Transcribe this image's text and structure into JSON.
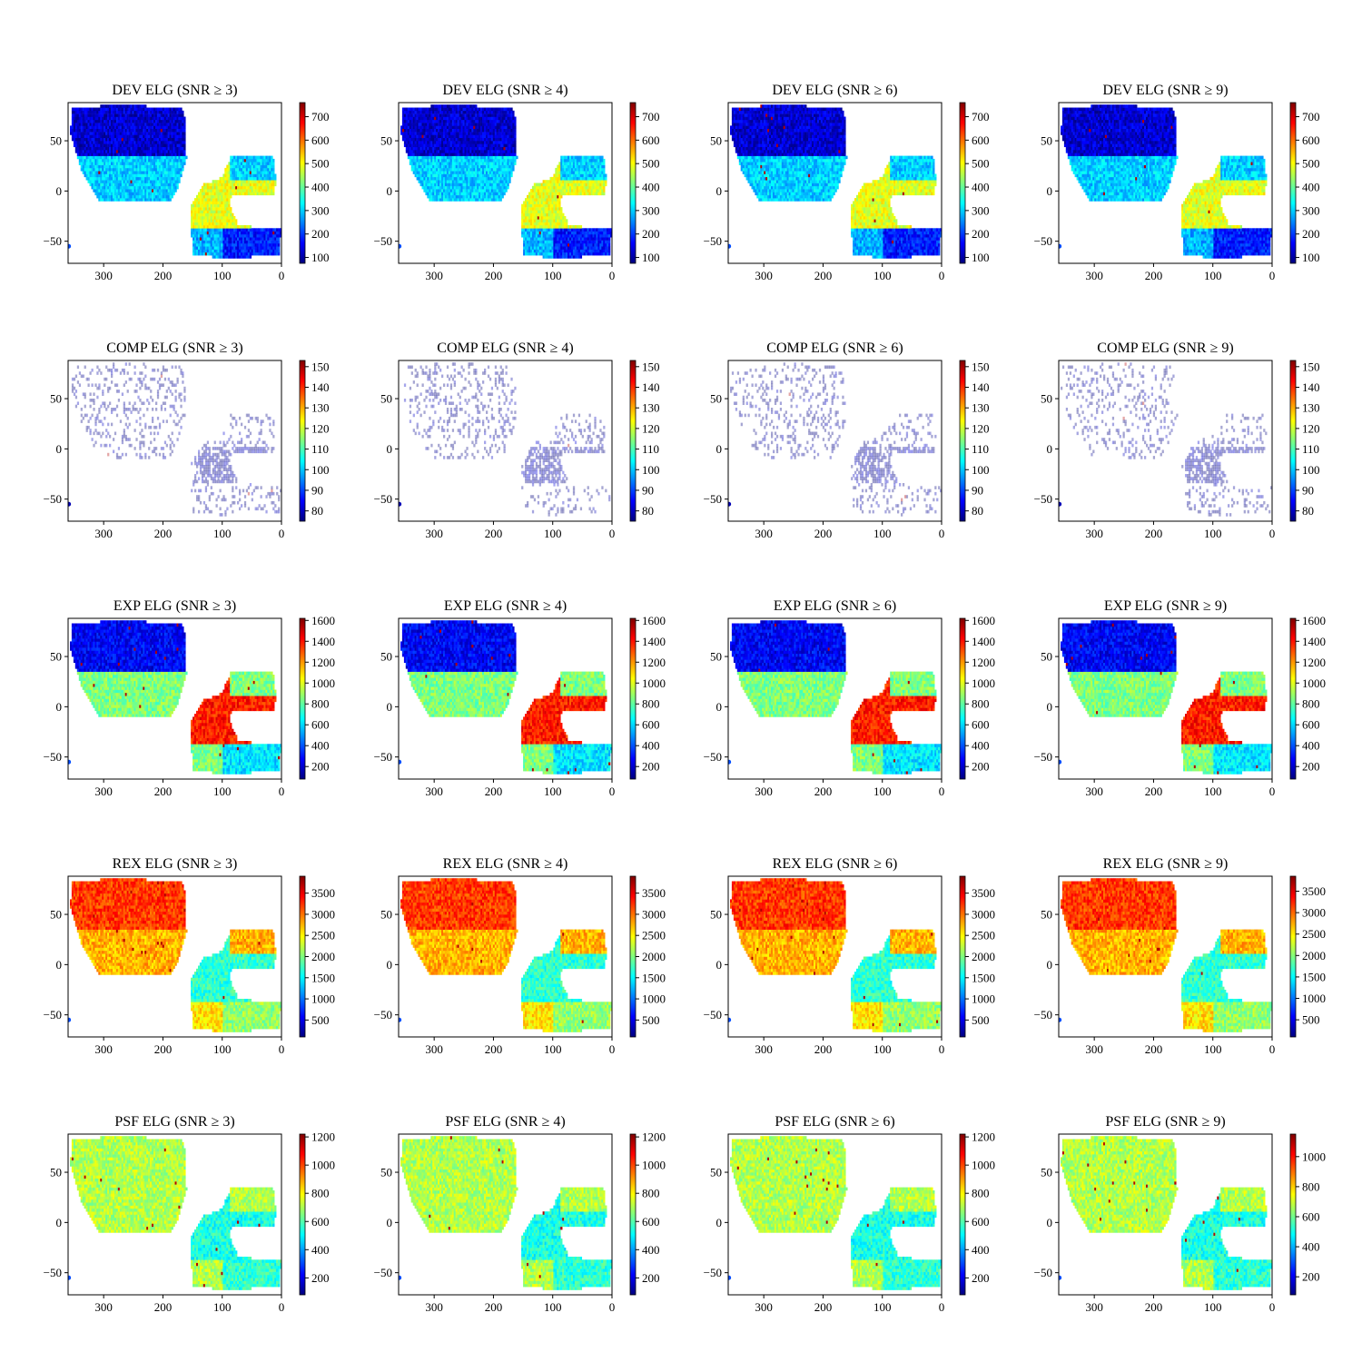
{
  "figure": {
    "colormap": "jet",
    "colormap_stops": [
      "#00007f",
      "#0000ff",
      "#007fff",
      "#00ffff",
      "#7fff7f",
      "#ffff00",
      "#ff7f00",
      "#ff0000",
      "#7f0000"
    ],
    "rows": [
      "DEV",
      "COMP",
      "EXP",
      "REX",
      "PSF"
    ],
    "snr_thresholds": [
      3,
      4,
      6,
      9
    ]
  },
  "chart_data": [
    {
      "type": "heatmap",
      "title": "DEV ELG (SNR ≥ 3)",
      "xlim": [
        360,
        0
      ],
      "ylim": [
        -72,
        88
      ],
      "xticks": [
        300,
        200,
        100,
        0
      ],
      "yticks": [
        50,
        0,
        -50
      ],
      "cbar_range": [
        75,
        760
      ],
      "cbar_ticks": [
        100,
        200,
        300,
        400,
        500,
        600,
        700
      ],
      "density_levels": {
        "north": 0.08,
        "mid": 0.33,
        "southA": 0.6,
        "southB": 0.15,
        "southC": 0.3
      }
    },
    {
      "type": "heatmap",
      "title": "DEV ELG (SNR ≥ 4)",
      "xlim": [
        360,
        0
      ],
      "ylim": [
        -72,
        88
      ],
      "xticks": [
        300,
        200,
        100,
        0
      ],
      "yticks": [
        50,
        0,
        -50
      ],
      "cbar_range": [
        75,
        760
      ],
      "cbar_ticks": [
        100,
        200,
        300,
        400,
        500,
        600,
        700
      ],
      "density_levels": {
        "north": 0.08,
        "mid": 0.33,
        "southA": 0.6,
        "southB": 0.15,
        "southC": 0.3
      }
    },
    {
      "type": "heatmap",
      "title": "DEV ELG (SNR ≥ 6)",
      "xlim": [
        360,
        0
      ],
      "ylim": [
        -72,
        88
      ],
      "xticks": [
        300,
        200,
        100,
        0
      ],
      "yticks": [
        50,
        0,
        -50
      ],
      "cbar_range": [
        75,
        760
      ],
      "cbar_ticks": [
        100,
        200,
        300,
        400,
        500,
        600,
        700
      ],
      "density_levels": {
        "north": 0.08,
        "mid": 0.33,
        "southA": 0.6,
        "southB": 0.15,
        "southC": 0.3
      }
    },
    {
      "type": "heatmap",
      "title": "DEV ELG (SNR ≥ 9)",
      "xlim": [
        360,
        0
      ],
      "ylim": [
        -72,
        88
      ],
      "xticks": [
        300,
        200,
        100,
        0
      ],
      "yticks": [
        50,
        0,
        -50
      ],
      "cbar_range": [
        75,
        760
      ],
      "cbar_ticks": [
        100,
        200,
        300,
        400,
        500,
        600,
        700
      ],
      "density_levels": {
        "north": 0.08,
        "mid": 0.33,
        "southA": 0.6,
        "southB": 0.15,
        "southC": 0.3
      }
    },
    {
      "type": "heatmap",
      "title": "COMP ELG (SNR ≥ 3)",
      "xlim": [
        360,
        0
      ],
      "ylim": [
        -72,
        88
      ],
      "xticks": [
        300,
        200,
        100,
        0
      ],
      "yticks": [
        50,
        0,
        -50
      ],
      "cbar_range": [
        75,
        153
      ],
      "cbar_ticks": [
        80,
        90,
        100,
        110,
        120,
        130,
        140,
        150
      ],
      "density_levels": {
        "north": 0.0,
        "mid": 0.0,
        "southA": 0.02,
        "southB": 0.0,
        "southC": 0.0
      }
    },
    {
      "type": "heatmap",
      "title": "COMP ELG (SNR ≥ 4)",
      "xlim": [
        360,
        0
      ],
      "ylim": [
        -72,
        88
      ],
      "xticks": [
        300,
        200,
        100,
        0
      ],
      "yticks": [
        50,
        0,
        -50
      ],
      "cbar_range": [
        75,
        153
      ],
      "cbar_ticks": [
        80,
        90,
        100,
        110,
        120,
        130,
        140,
        150
      ],
      "density_levels": {
        "north": 0.0,
        "mid": 0.0,
        "southA": 0.02,
        "southB": 0.0,
        "southC": 0.0
      }
    },
    {
      "type": "heatmap",
      "title": "COMP ELG (SNR ≥ 6)",
      "xlim": [
        360,
        0
      ],
      "ylim": [
        -72,
        88
      ],
      "xticks": [
        300,
        200,
        100,
        0
      ],
      "yticks": [
        50,
        0,
        -50
      ],
      "cbar_range": [
        75,
        153
      ],
      "cbar_ticks": [
        80,
        90,
        100,
        110,
        120,
        130,
        140,
        150
      ],
      "density_levels": {
        "north": 0.0,
        "mid": 0.0,
        "southA": 0.02,
        "southB": 0.0,
        "southC": 0.0
      }
    },
    {
      "type": "heatmap",
      "title": "COMP ELG (SNR ≥ 9)",
      "xlim": [
        360,
        0
      ],
      "ylim": [
        -72,
        88
      ],
      "xticks": [
        300,
        200,
        100,
        0
      ],
      "yticks": [
        50,
        0,
        -50
      ],
      "cbar_range": [
        75,
        153
      ],
      "cbar_ticks": [
        80,
        90,
        100,
        110,
        120,
        130,
        140,
        150
      ],
      "density_levels": {
        "north": 0.0,
        "mid": 0.0,
        "southA": 0.02,
        "southB": 0.0,
        "southC": 0.0
      }
    },
    {
      "type": "heatmap",
      "title": "EXP ELG (SNR ≥ 3)",
      "xlim": [
        360,
        0
      ],
      "ylim": [
        -72,
        88
      ],
      "xticks": [
        300,
        200,
        100,
        0
      ],
      "yticks": [
        50,
        0,
        -50
      ],
      "cbar_range": [
        80,
        1620
      ],
      "cbar_ticks": [
        200,
        400,
        600,
        800,
        1000,
        1200,
        1400,
        1600
      ],
      "density_levels": {
        "north": 0.12,
        "mid": 0.5,
        "southA": 0.85,
        "southB": 0.35,
        "southC": 0.5
      }
    },
    {
      "type": "heatmap",
      "title": "EXP ELG (SNR ≥ 4)",
      "xlim": [
        360,
        0
      ],
      "ylim": [
        -72,
        88
      ],
      "xticks": [
        300,
        200,
        100,
        0
      ],
      "yticks": [
        50,
        0,
        -50
      ],
      "cbar_range": [
        80,
        1620
      ],
      "cbar_ticks": [
        200,
        400,
        600,
        800,
        1000,
        1200,
        1400,
        1600
      ],
      "density_levels": {
        "north": 0.12,
        "mid": 0.5,
        "southA": 0.85,
        "southB": 0.35,
        "southC": 0.5
      }
    },
    {
      "type": "heatmap",
      "title": "EXP ELG (SNR ≥ 6)",
      "xlim": [
        360,
        0
      ],
      "ylim": [
        -72,
        88
      ],
      "xticks": [
        300,
        200,
        100,
        0
      ],
      "yticks": [
        50,
        0,
        -50
      ],
      "cbar_range": [
        80,
        1620
      ],
      "cbar_ticks": [
        200,
        400,
        600,
        800,
        1000,
        1200,
        1400,
        1600
      ],
      "density_levels": {
        "north": 0.12,
        "mid": 0.5,
        "southA": 0.85,
        "southB": 0.35,
        "southC": 0.5
      }
    },
    {
      "type": "heatmap",
      "title": "EXP ELG (SNR ≥ 9)",
      "xlim": [
        360,
        0
      ],
      "ylim": [
        -72,
        88
      ],
      "xticks": [
        300,
        200,
        100,
        0
      ],
      "yticks": [
        50,
        0,
        -50
      ],
      "cbar_range": [
        80,
        1620
      ],
      "cbar_ticks": [
        200,
        400,
        600,
        800,
        1000,
        1200,
        1400,
        1600
      ],
      "density_levels": {
        "north": 0.12,
        "mid": 0.5,
        "southA": 0.85,
        "southB": 0.35,
        "southC": 0.5
      }
    },
    {
      "type": "heatmap",
      "title": "REX ELG (SNR ≥ 3)",
      "xlim": [
        360,
        0
      ],
      "ylim": [
        -72,
        88
      ],
      "xticks": [
        300,
        200,
        100,
        0
      ],
      "yticks": [
        50,
        0,
        -50
      ],
      "cbar_range": [
        100,
        3900
      ],
      "cbar_ticks": [
        500,
        1000,
        1500,
        2000,
        2500,
        3000,
        3500
      ],
      "density_levels": {
        "north": 0.82,
        "mid": 0.7,
        "southA": 0.42,
        "southB": 0.52,
        "southC": 0.65
      }
    },
    {
      "type": "heatmap",
      "title": "REX ELG (SNR ≥ 4)",
      "xlim": [
        360,
        0
      ],
      "ylim": [
        -72,
        88
      ],
      "xticks": [
        300,
        200,
        100,
        0
      ],
      "yticks": [
        50,
        0,
        -50
      ],
      "cbar_range": [
        100,
        3900
      ],
      "cbar_ticks": [
        500,
        1000,
        1500,
        2000,
        2500,
        3000,
        3500
      ],
      "density_levels": {
        "north": 0.82,
        "mid": 0.7,
        "southA": 0.42,
        "southB": 0.52,
        "southC": 0.65
      }
    },
    {
      "type": "heatmap",
      "title": "REX ELG (SNR ≥ 6)",
      "xlim": [
        360,
        0
      ],
      "ylim": [
        -72,
        88
      ],
      "xticks": [
        300,
        200,
        100,
        0
      ],
      "yticks": [
        50,
        0,
        -50
      ],
      "cbar_range": [
        100,
        3900
      ],
      "cbar_ticks": [
        500,
        1000,
        1500,
        2000,
        2500,
        3000,
        3500
      ],
      "density_levels": {
        "north": 0.82,
        "mid": 0.7,
        "southA": 0.42,
        "southB": 0.52,
        "southC": 0.65
      }
    },
    {
      "type": "heatmap",
      "title": "REX ELG (SNR ≥ 9)",
      "xlim": [
        360,
        0
      ],
      "ylim": [
        -72,
        88
      ],
      "xticks": [
        300,
        200,
        100,
        0
      ],
      "yticks": [
        50,
        0,
        -50
      ],
      "cbar_range": [
        100,
        3850
      ],
      "cbar_ticks": [
        500,
        1000,
        1500,
        2000,
        2500,
        3000,
        3500
      ],
      "density_levels": {
        "north": 0.82,
        "mid": 0.7,
        "southA": 0.42,
        "southB": 0.52,
        "southC": 0.65
      }
    },
    {
      "type": "heatmap",
      "title": "PSF ELG (SNR ≥ 3)",
      "xlim": [
        360,
        0
      ],
      "ylim": [
        -72,
        88
      ],
      "xticks": [
        300,
        200,
        100,
        0
      ],
      "yticks": [
        50,
        0,
        -50
      ],
      "cbar_range": [
        80,
        1220
      ],
      "cbar_ticks": [
        200,
        400,
        600,
        800,
        1000,
        1200
      ],
      "density_levels": {
        "north": 0.55,
        "mid": 0.55,
        "southA": 0.4,
        "southB": 0.42,
        "southC": 0.55
      }
    },
    {
      "type": "heatmap",
      "title": "PSF ELG (SNR ≥ 4)",
      "xlim": [
        360,
        0
      ],
      "ylim": [
        -72,
        88
      ],
      "xticks": [
        300,
        200,
        100,
        0
      ],
      "yticks": [
        50,
        0,
        -50
      ],
      "cbar_range": [
        80,
        1220
      ],
      "cbar_ticks": [
        200,
        400,
        600,
        800,
        1000,
        1200
      ],
      "density_levels": {
        "north": 0.55,
        "mid": 0.55,
        "southA": 0.4,
        "southB": 0.42,
        "southC": 0.55
      }
    },
    {
      "type": "heatmap",
      "title": "PSF ELG (SNR ≥ 6)",
      "xlim": [
        360,
        0
      ],
      "ylim": [
        -72,
        88
      ],
      "xticks": [
        300,
        200,
        100,
        0
      ],
      "yticks": [
        50,
        0,
        -50
      ],
      "cbar_range": [
        80,
        1220
      ],
      "cbar_ticks": [
        200,
        400,
        600,
        800,
        1000,
        1200
      ],
      "density_levels": {
        "north": 0.55,
        "mid": 0.55,
        "southA": 0.4,
        "southB": 0.42,
        "southC": 0.55
      }
    },
    {
      "type": "heatmap",
      "title": "PSF ELG (SNR ≥ 9)",
      "xlim": [
        360,
        0
      ],
      "ylim": [
        -72,
        88
      ],
      "xticks": [
        300,
        200,
        100,
        0
      ],
      "yticks": [
        50,
        0,
        -50
      ],
      "cbar_range": [
        80,
        1150
      ],
      "cbar_ticks": [
        200,
        400,
        600,
        800,
        1000
      ],
      "density_levels": {
        "north": 0.55,
        "mid": 0.55,
        "southA": 0.4,
        "southB": 0.42,
        "southC": 0.55
      }
    }
  ]
}
